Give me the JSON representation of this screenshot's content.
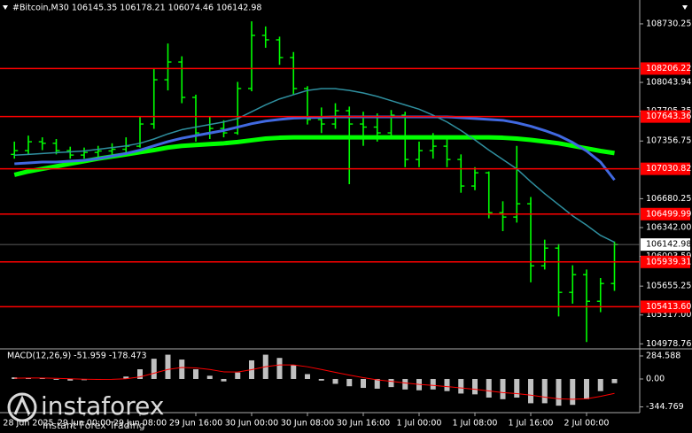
{
  "chart_data": [
    {
      "type": "ohlc",
      "title": "#Bitcoin,M30  106145.35 106178.21 106074.46 106142.98",
      "categories": [
        null,
        "28 Jun 2025",
        null,
        null,
        null,
        "29 Jun 00:00",
        null,
        null,
        null,
        "29 Jun 08:00",
        null,
        null,
        null,
        "29 Jun 16:00",
        null,
        null,
        null,
        "30 Jun 00:00",
        null,
        null,
        null,
        "30 Jun 08:00",
        null,
        null,
        null,
        "30 Jun 16:00",
        null,
        null,
        null,
        "1 Jul 00:00",
        null,
        null,
        null,
        "1 Jul 08:00",
        null,
        null,
        null,
        "1 Jul 16:00",
        null,
        null,
        null,
        "2 Jul 00:00",
        null,
        null
      ],
      "ohlc": [
        [
          107200,
          107350,
          107150,
          107244
        ],
        [
          107244,
          107420,
          107200,
          107348
        ],
        [
          107348,
          107400,
          107250,
          107330
        ],
        [
          107330,
          107380,
          107200,
          107244
        ],
        [
          107244,
          107290,
          107150,
          107192
        ],
        [
          107192,
          107280,
          107150,
          107223
        ],
        [
          107223,
          107300,
          107170,
          107240
        ],
        [
          107240,
          107330,
          107200,
          107260
        ],
        [
          107260,
          107400,
          107220,
          107296
        ],
        [
          107296,
          107650,
          107280,
          107556
        ],
        [
          107556,
          108200,
          107500,
          108075
        ],
        [
          108075,
          108500,
          107950,
          108283
        ],
        [
          108283,
          108350,
          107800,
          107868
        ],
        [
          107868,
          107900,
          107350,
          107452
        ],
        [
          107452,
          107650,
          107380,
          107504
        ],
        [
          107504,
          107600,
          107400,
          107452
        ],
        [
          107452,
          108050,
          107430,
          107972
        ],
        [
          107972,
          108760,
          107940,
          108595
        ],
        [
          108595,
          108700,
          108450,
          108543
        ],
        [
          108543,
          108580,
          108250,
          108335
        ],
        [
          108335,
          108400,
          107900,
          107972
        ],
        [
          107972,
          108000,
          107550,
          107608
        ],
        [
          107608,
          107750,
          107450,
          107556
        ],
        [
          107556,
          107800,
          107500,
          107712
        ],
        [
          107712,
          107760,
          106850,
          107556
        ],
        [
          107556,
          107700,
          107300,
          107520
        ],
        [
          107520,
          107680,
          107350,
          107452
        ],
        [
          107452,
          107720,
          107400,
          107660
        ],
        [
          107660,
          107700,
          107050,
          107140
        ],
        [
          107140,
          107350,
          107050,
          107244
        ],
        [
          107244,
          107450,
          107150,
          107296
        ],
        [
          107296,
          107400,
          107050,
          107140
        ],
        [
          107140,
          107200,
          106750,
          106829
        ],
        [
          106829,
          107050,
          106780,
          106984
        ],
        [
          106984,
          107000,
          106450,
          106517
        ],
        [
          106517,
          106650,
          106300,
          106465
        ],
        [
          106465,
          107300,
          106400,
          106621
        ],
        [
          106621,
          106700,
          105700,
          105894
        ],
        [
          105894,
          106200,
          105850,
          106101
        ],
        [
          106101,
          106150,
          105300,
          105582
        ],
        [
          105582,
          105900,
          105450,
          105790
        ],
        [
          105790,
          105850,
          105000,
          105478
        ],
        [
          105478,
          105750,
          105350,
          105686
        ],
        [
          105686,
          106178.21,
          105600,
          106142.98
        ]
      ],
      "bar_color": "#00ff00",
      "series": [
        {
          "color": "#00ff00",
          "width": 5,
          "values": [
            106960,
            107000,
            107030,
            107060,
            107090,
            107120,
            107150,
            107175,
            107200,
            107225,
            107250,
            107280,
            107300,
            107310,
            107320,
            107330,
            107345,
            107365,
            107385,
            107395,
            107400,
            107400,
            107400,
            107400,
            107400,
            107400,
            107400,
            107400,
            107400,
            107400,
            107400,
            107400,
            107400,
            107400,
            107400,
            107395,
            107385,
            107370,
            107350,
            107330,
            107300,
            107270,
            107240,
            107215
          ]
        },
        {
          "color": "#4169e1",
          "width": 3,
          "values": [
            107090,
            107100,
            107110,
            107110,
            107120,
            107130,
            107150,
            107180,
            107210,
            107250,
            107300,
            107350,
            107390,
            107420,
            107450,
            107480,
            107520,
            107560,
            107590,
            107610,
            107625,
            107630,
            107635,
            107640,
            107640,
            107640,
            107640,
            107640,
            107640,
            107640,
            107640,
            107640,
            107630,
            107620,
            107610,
            107600,
            107570,
            107530,
            107480,
            107420,
            107340,
            107240,
            107110,
            106900
          ]
        },
        {
          "color": "#2f8f9f",
          "width": 1.5,
          "values": [
            107190,
            107200,
            107210,
            107220,
            107230,
            107240,
            107260,
            107280,
            107300,
            107330,
            107380,
            107440,
            107490,
            107520,
            107550,
            107580,
            107620,
            107700,
            107780,
            107850,
            107900,
            107950,
            107970,
            107970,
            107950,
            107920,
            107880,
            107830,
            107780,
            107730,
            107660,
            107580,
            107480,
            107370,
            107250,
            107140,
            107030,
            106880,
            106740,
            106610,
            106480,
            106370,
            106250,
            106170
          ]
        }
      ],
      "levels": {
        "color": "#ff0000",
        "values": [
          108206.22,
          107643.36,
          107030.82,
          106499.99,
          105939.31,
          {
            "value": 105413.6,
            "label": "105413.60"
          }
        ]
      },
      "ylim": [
        104930,
        109010
      ],
      "yticks": [
        108730.25,
        108043.94,
        107705.35,
        107356.75,
        106680.25,
        {
          "value": 106342,
          "label": "106342.00"
        },
        106003.59,
        105655.25,
        {
          "value": 105317,
          "label": "105317.00"
        },
        104978.76
      ]
    },
    {
      "type": "macd",
      "title": "MACD(12,26,9) -51.959 -178.473",
      "values": [
        20,
        15,
        10,
        -10,
        -20,
        -15,
        -10,
        0,
        30,
        120,
        250,
        300,
        240,
        120,
        40,
        -30,
        80,
        230,
        300,
        260,
        170,
        60,
        -20,
        -60,
        -90,
        -110,
        -120,
        -100,
        -130,
        -140,
        -130,
        -150,
        -180,
        -190,
        -230,
        -250,
        -230,
        -300,
        -300,
        -330,
        -320,
        -250,
        -150,
        -51.959
      ],
      "color": "#c0c0c0",
      "series": [
        {
          "color": "#ff0000",
          "width": 1,
          "values": [
            10,
            12,
            12,
            8,
            2,
            -3,
            -5,
            -4,
            3,
            26,
            71,
            117,
            142,
            137,
            117,
            88,
            86,
            115,
            152,
            174,
            173,
            151,
            117,
            82,
            48,
            16,
            -11,
            -29,
            -49,
            -67,
            -80,
            -94,
            -111,
            -127,
            -148,
            -168,
            -181,
            -200,
            -225,
            -245,
            -250,
            -245,
            -215,
            -178.473
          ]
        }
      ],
      "ylim": [
        -405,
        350
      ],
      "yticks": [
        284.588,
        {
          "value": 0,
          "label": "0.00"
        },
        -344.769
      ]
    }
  ],
  "watermark": {
    "brand": "instaforex",
    "tagline": "Instant Forex Trading"
  }
}
